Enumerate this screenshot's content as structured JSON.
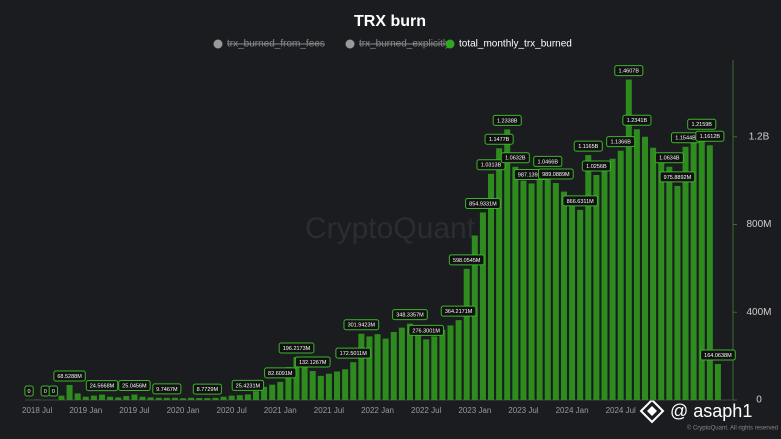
{
  "chart_data": {
    "type": "bar",
    "title": "TRX burn",
    "watermark": "CryptoQuant",
    "credit": "@ asaph1",
    "copyright": "© CryptoQuant. All rights reserved",
    "categories": [
      null,
      "2018 Jul",
      null,
      null,
      null,
      null,
      null,
      "2019 Jan",
      null,
      null,
      null,
      null,
      null,
      "2019 Jul",
      null,
      null,
      null,
      null,
      null,
      "2020 Jan",
      null,
      null,
      null,
      null,
      null,
      "2020 Jul",
      null,
      null,
      null,
      null,
      null,
      "2021 Jan",
      null,
      null,
      null,
      null,
      null,
      "2021 Jul",
      null,
      null,
      null,
      null,
      null,
      "2022 Jan",
      null,
      null,
      null,
      null,
      null,
      "2022 Jul",
      null,
      null,
      null,
      null,
      null,
      "2023 Jan",
      null,
      null,
      null,
      null,
      null,
      "2023 Jul",
      null,
      null,
      null,
      null,
      null,
      "2024 Jan",
      null,
      null,
      null,
      null,
      null,
      "2024 Jul",
      null,
      null,
      null,
      null,
      null,
      null,
      null,
      null,
      null,
      null,
      null,
      null
    ],
    "series": [
      {
        "name": "trx_burned_from_fees",
        "color": "#9a9a9a",
        "hidden": true
      },
      {
        "name": "trx_burned_explicitly",
        "color": "#9a9a9a",
        "hidden": true
      },
      {
        "name": "total_monthly_trx_burned",
        "color": "#2e8b1e",
        "values": [
          0,
          2000000,
          0,
          0,
          20000000,
          68528800,
          30000000,
          15000000,
          20000000,
          24566800,
          15000000,
          12000000,
          18000000,
          25045600,
          15000000,
          12000000,
          10000000,
          9746700,
          10000000,
          8000000,
          10000000,
          9000000,
          8772900,
          10000000,
          15000000,
          20000000,
          22000000,
          25423100,
          40000000,
          60000000,
          70000000,
          82609100,
          150000000,
          196217300,
          170000000,
          132126700,
          110000000,
          120000000,
          130000000,
          140000000,
          172501100,
          301942300,
          290000000,
          300000000,
          280000000,
          310000000,
          330000000,
          348335700,
          300000000,
          276300100,
          290000000,
          320000000,
          340000000,
          364217100,
          598054500,
          750000000,
          854933100,
          1031300000,
          1147700000,
          1233800000,
          1063200000,
          1000000000,
          987139300,
          1020000000,
          1046600000,
          989088900,
          950000000,
          900000000,
          866631100,
          1116500000,
          1025600000,
          1080000000,
          1100000000,
          1136600000,
          1460700000,
          1234100000,
          1200000000,
          1150000000,
          1100000000,
          1063400000,
          975889200,
          1154400000,
          1180000000,
          1215900000,
          1161200000,
          164063800
        ],
        "value_labels": [
          "0",
          null,
          "0",
          "0",
          null,
          "68.5288M",
          null,
          null,
          null,
          "24.5668M",
          null,
          null,
          null,
          "25.0456M",
          null,
          null,
          null,
          "9.7467M",
          null,
          null,
          null,
          null,
          "8.7729M",
          null,
          null,
          null,
          null,
          "25.4231M",
          null,
          null,
          null,
          "82.6091M",
          null,
          "196.2173M",
          null,
          "132.1267M",
          null,
          null,
          null,
          null,
          "172.5011M",
          "301.9423M",
          null,
          null,
          null,
          null,
          null,
          "348.3357M",
          null,
          "276.3001M",
          null,
          null,
          null,
          "364.2171M",
          "598.0545M",
          null,
          "854.9331M",
          "1.0313B",
          "1.1477B",
          "1.2338B",
          "1.0632B",
          null,
          "987.1393M",
          null,
          "1.0466B",
          "989.0889M",
          null,
          null,
          "866.6311M",
          "1.1165B",
          "1.0256B",
          null,
          null,
          "1.1366B",
          "1.4607B",
          "1.2341B",
          null,
          null,
          null,
          "1.0634B",
          "975.8892M",
          "1.1544B",
          null,
          "1.2159B",
          "1.1612B",
          "164.0638M"
        ]
      }
    ],
    "ylim": [
      0,
      1550000000
    ],
    "yticks": [
      0,
      {
        "value": 400000000,
        "label": "400M"
      },
      {
        "value": 800000000,
        "label": "800M"
      },
      {
        "value": 1200000000,
        "label": "1.2B"
      }
    ],
    "grid": false,
    "y_axis_side": "right"
  }
}
